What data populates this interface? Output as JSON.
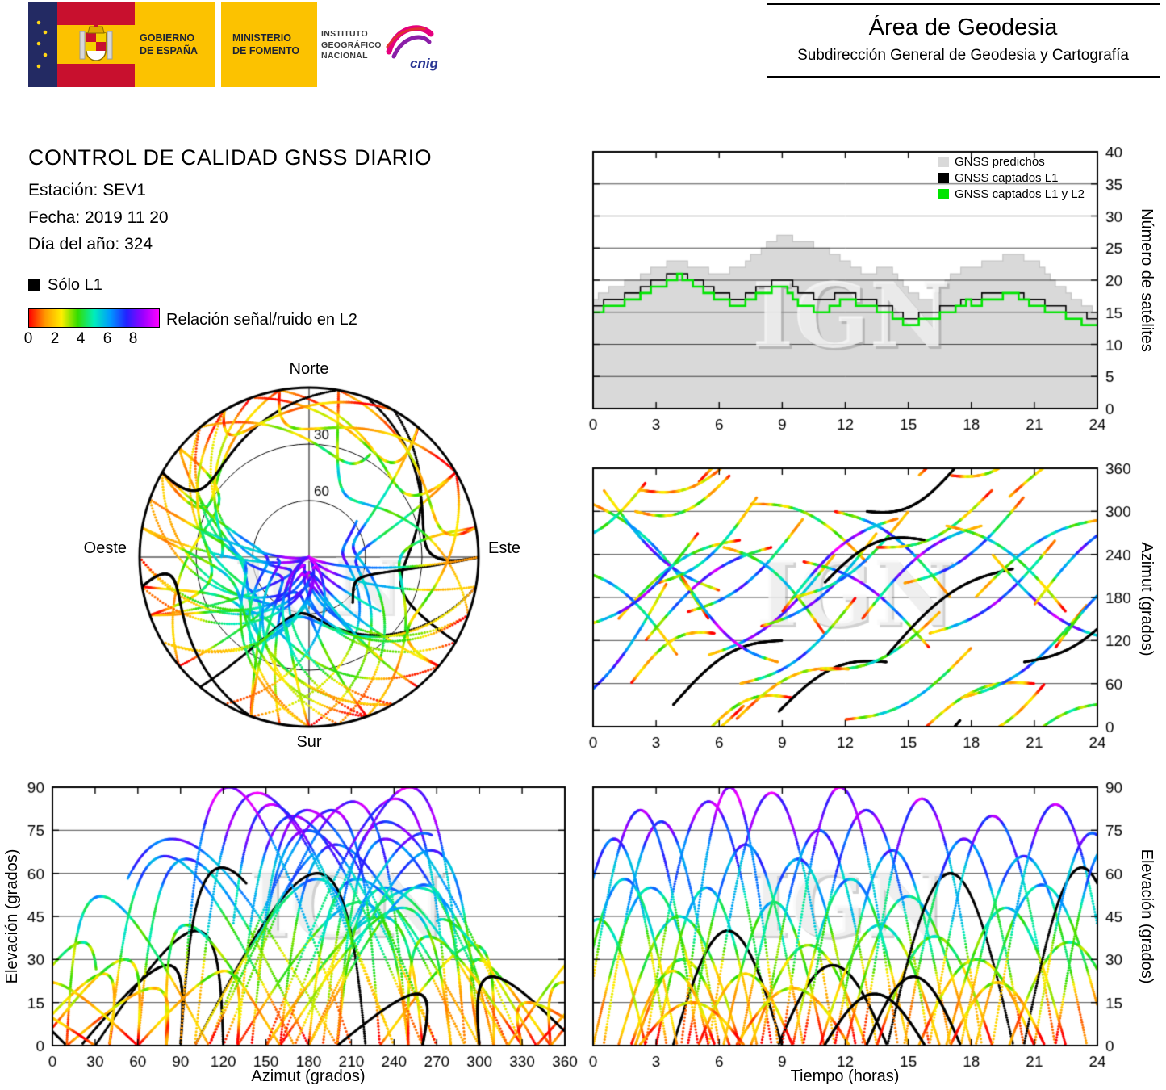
{
  "watermark": "IGN",
  "header": {
    "gobierno_line1": "GOBIERNO",
    "gobierno_line2": "DE ESPAÑA",
    "ministerio_line1": "MINISTERIO",
    "ministerio_line2": "DE FOMENTO",
    "instituto_line1": "INSTITUTO",
    "instituto_line2": "GEOGRÁFICO",
    "instituto_line3": "NACIONAL",
    "cnig_label": "cnig",
    "area_title": "Área de Geodesia",
    "area_subtitle": "Subdirección General de Geodesia y Cartografía"
  },
  "info": {
    "title": "CONTROL DE CALIDAD GNSS DIARIO",
    "station_label": "Estación: SEV1",
    "date_label": "Fecha: 2019 11 20",
    "doy_label": "Día del año: 324"
  },
  "snr_legend": {
    "solo_l1_label": "Sólo L1",
    "bar_label": "Relación señal/ruido en L2",
    "ticks": [
      "0",
      "2",
      "4",
      "6",
      "8"
    ],
    "gradient": [
      "#ff0000",
      "#ff9900",
      "#ffee00",
      "#33dd00",
      "#00eebb",
      "#0099ff",
      "#2222ff",
      "#9900ff",
      "#ff00ff"
    ]
  },
  "chart_data": [
    {
      "id": "sat_count",
      "type": "area",
      "ylabel": "Número de satélites",
      "xlim": [
        0,
        24
      ],
      "ylim": [
        0,
        40
      ],
      "xticks": [
        0,
        3,
        6,
        9,
        12,
        15,
        18,
        21,
        24
      ],
      "yticks": [
        0,
        5,
        10,
        15,
        20,
        25,
        30,
        35,
        40
      ],
      "grid_y": [
        5,
        10,
        15,
        20,
        25,
        30,
        35
      ],
      "x_start": 0,
      "x_step": 0.25,
      "series": [
        {
          "name": "GNSS predichos",
          "color": "#d9d9d9",
          "values": [
            17,
            18,
            18,
            19,
            19,
            19,
            20,
            20,
            20,
            21,
            21,
            22,
            22,
            22,
            23,
            23,
            23,
            23,
            22,
            22,
            22,
            22,
            21,
            21,
            21,
            21,
            22,
            22,
            22,
            23,
            24,
            24,
            25,
            26,
            26,
            27,
            27,
            27,
            26,
            26,
            26,
            26,
            25,
            25,
            25,
            24,
            24,
            23,
            23,
            22,
            22,
            21,
            21,
            21,
            22,
            22,
            22,
            21,
            20,
            19,
            18,
            18,
            17,
            17,
            17,
            18,
            19,
            20,
            21,
            21,
            22,
            22,
            22,
            22,
            23,
            23,
            23,
            23,
            24,
            24,
            24,
            24,
            23,
            23,
            23,
            22,
            21,
            20,
            19,
            19,
            18,
            17,
            17,
            16,
            16,
            15,
            15
          ]
        },
        {
          "name": "GNSS captados L1",
          "color": "#000000",
          "values": [
            16,
            16,
            17,
            17,
            17,
            17,
            18,
            18,
            18,
            19,
            19,
            20,
            20,
            20,
            21,
            21,
            21,
            21,
            20,
            20,
            20,
            19,
            19,
            18,
            18,
            18,
            17,
            17,
            17,
            18,
            18,
            19,
            19,
            19,
            20,
            20,
            20,
            20,
            19,
            18,
            18,
            18,
            17,
            17,
            17,
            17,
            18,
            18,
            18,
            18,
            17,
            17,
            17,
            17,
            16,
            16,
            16,
            15,
            15,
            14,
            14,
            14,
            15,
            15,
            15,
            15,
            16,
            16,
            16,
            16,
            17,
            17,
            17,
            17,
            18,
            18,
            18,
            18,
            18,
            18,
            18,
            18,
            17,
            17,
            17,
            17,
            16,
            16,
            16,
            16,
            15,
            15,
            15,
            15,
            14,
            14,
            14
          ]
        },
        {
          "name": "GNSS captados L1 y L2",
          "color": "#00e400",
          "values": [
            15,
            15,
            16,
            16,
            16,
            16,
            17,
            17,
            17,
            18,
            18,
            19,
            19,
            19,
            20,
            20,
            21,
            20,
            20,
            19,
            19,
            18,
            18,
            17,
            17,
            17,
            16,
            16,
            16,
            17,
            17,
            18,
            18,
            18,
            19,
            19,
            19,
            18,
            17,
            16,
            16,
            16,
            15,
            15,
            15,
            16,
            16,
            17,
            17,
            17,
            16,
            16,
            16,
            16,
            15,
            15,
            15,
            14,
            14,
            13,
            13,
            13,
            14,
            14,
            14,
            14,
            15,
            15,
            15,
            16,
            16,
            17,
            16,
            16,
            17,
            17,
            17,
            17,
            18,
            18,
            18,
            17,
            17,
            16,
            16,
            16,
            15,
            15,
            15,
            15,
            14,
            14,
            14,
            13,
            13,
            13,
            13
          ]
        }
      ]
    },
    {
      "id": "skyplot",
      "type": "scatter",
      "projection": "polar",
      "labels": {
        "north": "Norte",
        "south": "Sur",
        "east": "Este",
        "west": "Oeste"
      },
      "ring_labels": [
        "30",
        "60"
      ],
      "elevation_rings_deg": [
        30,
        60
      ],
      "tracks_source": "satellite_passes"
    },
    {
      "id": "azimut_tiempo",
      "type": "scatter",
      "ylabel": "Azimut (grados)",
      "xlim": [
        0,
        24
      ],
      "ylim": [
        0,
        360
      ],
      "xticks": [
        0,
        3,
        6,
        9,
        12,
        15,
        18,
        21,
        24
      ],
      "yticks": [
        0,
        60,
        120,
        180,
        240,
        300,
        360
      ],
      "grid_y": [
        60,
        120,
        180,
        240,
        300
      ],
      "tracks_source": "satellite_passes"
    },
    {
      "id": "elev_azimut",
      "type": "scatter",
      "xlabel": "Azimut (grados)",
      "ylabel": "Elevación (grados)",
      "xlim": [
        0,
        360
      ],
      "ylim": [
        0,
        90
      ],
      "xticks": [
        0,
        30,
        60,
        90,
        120,
        150,
        180,
        210,
        240,
        270,
        300,
        330,
        360
      ],
      "yticks": [
        0,
        15,
        30,
        45,
        60,
        75,
        90
      ],
      "grid_y": [
        15,
        30,
        45,
        60,
        75
      ],
      "tracks_source": "satellite_passes"
    },
    {
      "id": "elev_tiempo",
      "type": "scatter",
      "xlabel": "Tiempo (horas)",
      "ylabel": "Elevación (grados)",
      "xlim": [
        0,
        24
      ],
      "ylim": [
        0,
        90
      ],
      "xticks": [
        0,
        3,
        6,
        9,
        12,
        15,
        18,
        21,
        24
      ],
      "yticks": [
        0,
        15,
        30,
        45,
        60,
        75,
        90
      ],
      "grid_y": [
        15,
        30,
        45,
        60,
        75
      ],
      "tracks_source": "satellite_passes"
    },
    {
      "id": "satellite_passes",
      "type": "scatter",
      "format": [
        "rise_h",
        "set_h",
        "max_elev_deg",
        "azimuth_rise_deg",
        "azimuth_set_deg",
        "has_L2"
      ],
      "passes": [
        [
          -1.5,
          3.5,
          72,
          20,
          200,
          1
        ],
        [
          0.0,
          5.5,
          55,
          310,
          150,
          1
        ],
        [
          0.5,
          6.0,
          78,
          330,
          190,
          1
        ],
        [
          1.2,
          7.0,
          45,
          150,
          260,
          1
        ],
        [
          2.0,
          6.5,
          30,
          300,
          350,
          1
        ],
        [
          2.5,
          8.5,
          85,
          120,
          250,
          1
        ],
        [
          3.0,
          7.8,
          55,
          200,
          320,
          1
        ],
        [
          3.8,
          9.0,
          40,
          30,
          120,
          0
        ],
        [
          4.5,
          10.0,
          70,
          160,
          290,
          1
        ],
        [
          5.0,
          9.5,
          25,
          340,
          400,
          1
        ],
        [
          5.5,
          11.5,
          88,
          100,
          240,
          1
        ],
        [
          6.2,
          11.0,
          50,
          250,
          130,
          1
        ],
        [
          7.0,
          12.5,
          65,
          60,
          180,
          1
        ],
        [
          7.5,
          13.0,
          35,
          310,
          230,
          1
        ],
        [
          8.0,
          13.5,
          75,
          140,
          270,
          1
        ],
        [
          8.8,
          14.0,
          28,
          20,
          90,
          0
        ],
        [
          9.5,
          15.0,
          58,
          180,
          300,
          1
        ],
        [
          10.0,
          16.0,
          82,
          230,
          110,
          1
        ],
        [
          10.8,
          16.5,
          42,
          80,
          160,
          1
        ],
        [
          11.5,
          17.0,
          68,
          300,
          180,
          1
        ],
        [
          12.0,
          18.0,
          52,
          10,
          110,
          1
        ],
        [
          12.8,
          18.5,
          86,
          150,
          280,
          1
        ],
        [
          13.5,
          19.0,
          38,
          250,
          330,
          1
        ],
        [
          14.0,
          20.0,
          60,
          100,
          220,
          0
        ],
        [
          14.8,
          20.5,
          72,
          200,
          320,
          1
        ],
        [
          15.5,
          21.0,
          30,
          350,
          420,
          1
        ],
        [
          16.0,
          22.0,
          80,
          130,
          260,
          1
        ],
        [
          16.8,
          22.5,
          48,
          280,
          160,
          1
        ],
        [
          17.5,
          23.5,
          66,
          40,
          170,
          1
        ],
        [
          18.2,
          24.5,
          56,
          180,
          290,
          1
        ],
        [
          19.0,
          25.0,
          84,
          240,
          120,
          1
        ],
        [
          19.8,
          25.5,
          36,
          320,
          390,
          1
        ],
        [
          20.5,
          26.0,
          62,
          90,
          200,
          0
        ],
        [
          21.0,
          26.5,
          74,
          170,
          300,
          1
        ],
        [
          -2.0,
          2.5,
          44,
          260,
          340,
          1
        ],
        [
          -1.0,
          4.0,
          58,
          220,
          100,
          1
        ],
        [
          -0.5,
          5.0,
          82,
          140,
          270,
          1
        ],
        [
          1.8,
          5.8,
          26,
          60,
          130,
          1
        ],
        [
          4.2,
          8.8,
          90,
          210,
          90,
          1
        ],
        [
          9.0,
          14.5,
          90,
          160,
          290,
          1
        ],
        [
          13.0,
          17.5,
          24,
          300,
          370,
          0
        ],
        [
          6.8,
          12.2,
          20,
          10,
          80,
          1
        ],
        [
          17.0,
          21.5,
          22,
          350,
          420,
          1
        ],
        [
          22.0,
          27.0,
          70,
          110,
          230,
          1
        ],
        [
          2.2,
          7.2,
          15,
          330,
          390,
          1
        ],
        [
          11.0,
          15.8,
          18,
          200,
          260,
          0
        ]
      ]
    }
  ]
}
